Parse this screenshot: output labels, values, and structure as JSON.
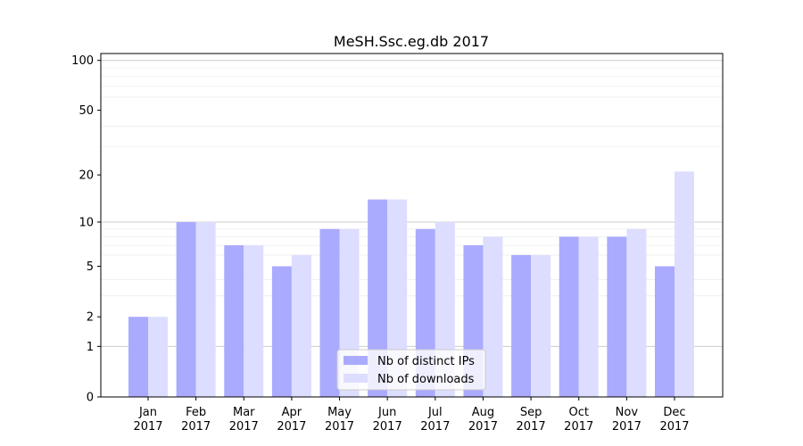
{
  "chart_data": {
    "type": "bar",
    "title": "MeSH.Ssc.eg.db 2017",
    "xlabel": "",
    "ylabel": "",
    "yscale": "log(1+y)",
    "ylim": [
      0,
      110
    ],
    "yticks": [
      0,
      1,
      2,
      5,
      10,
      20,
      50,
      100
    ],
    "grid": "horizontal",
    "legend_position": "bottom-center",
    "categories": [
      {
        "month": "Jan",
        "year": "2017"
      },
      {
        "month": "Feb",
        "year": "2017"
      },
      {
        "month": "Mar",
        "year": "2017"
      },
      {
        "month": "Apr",
        "year": "2017"
      },
      {
        "month": "May",
        "year": "2017"
      },
      {
        "month": "Jun",
        "year": "2017"
      },
      {
        "month": "Jul",
        "year": "2017"
      },
      {
        "month": "Aug",
        "year": "2017"
      },
      {
        "month": "Sep",
        "year": "2017"
      },
      {
        "month": "Oct",
        "year": "2017"
      },
      {
        "month": "Nov",
        "year": "2017"
      },
      {
        "month": "Dec",
        "year": "2017"
      }
    ],
    "series": [
      {
        "name": "Nb of distinct IPs",
        "color": "#aaaaff",
        "values": [
          2,
          10,
          7,
          5,
          9,
          14,
          9,
          7,
          6,
          8,
          8,
          5
        ]
      },
      {
        "name": "Nb of downloads",
        "color": "#ddddff",
        "values": [
          2,
          10,
          7,
          6,
          9,
          14,
          10,
          8,
          6,
          8,
          9,
          21
        ]
      }
    ]
  }
}
